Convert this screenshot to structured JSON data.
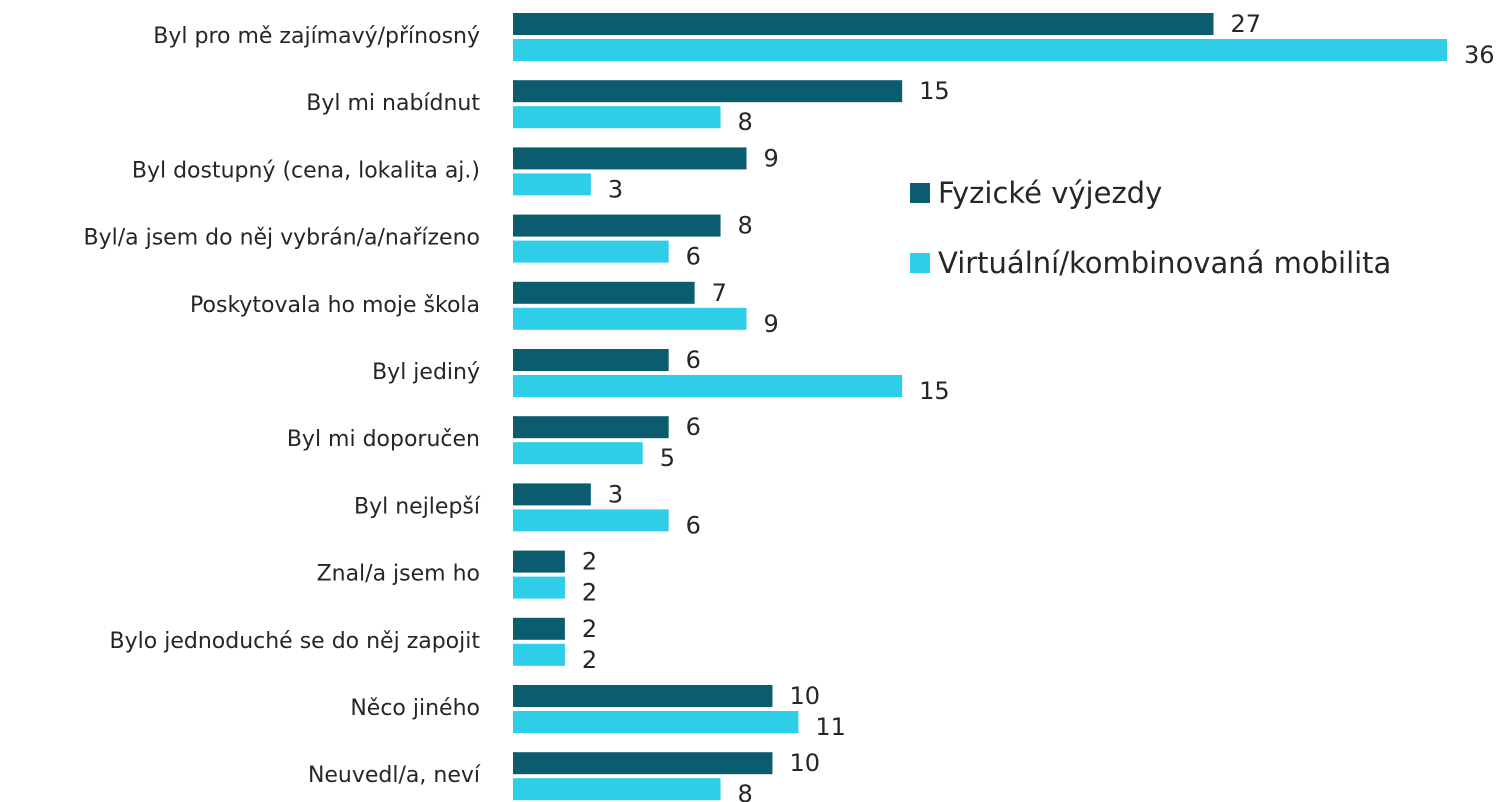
{
  "chart_data": {
    "type": "bar",
    "orientation": "horizontal",
    "categories": [
      "Byl pro mě zajímavý/přínosný",
      "Byl mi nabídnut",
      "Byl dostupný (cena, lokalita aj.)",
      "Byl/a jsem do něj vybrán/a/nařízeno",
      "Poskytovala ho moje škola",
      "Byl jediný",
      "Byl mi doporučen",
      "Byl nejlepší",
      "Znal/a jsem ho",
      "Bylo jednoduché se do něj zapojit",
      "Něco jiného",
      "Neuvedl/a, neví"
    ],
    "series": [
      {
        "name": "Fyzické výjezdy",
        "color": "#0b5c6e",
        "values": [
          27,
          15,
          9,
          8,
          7,
          6,
          6,
          3,
          2,
          2,
          10,
          10
        ]
      },
      {
        "name": "Virtuální/kombinovaná mobilita",
        "color": "#2ecde8",
        "values": [
          36,
          8,
          3,
          6,
          9,
          15,
          5,
          6,
          2,
          2,
          11,
          8
        ]
      }
    ],
    "xlim": [
      0,
      36
    ],
    "legend": "right"
  }
}
